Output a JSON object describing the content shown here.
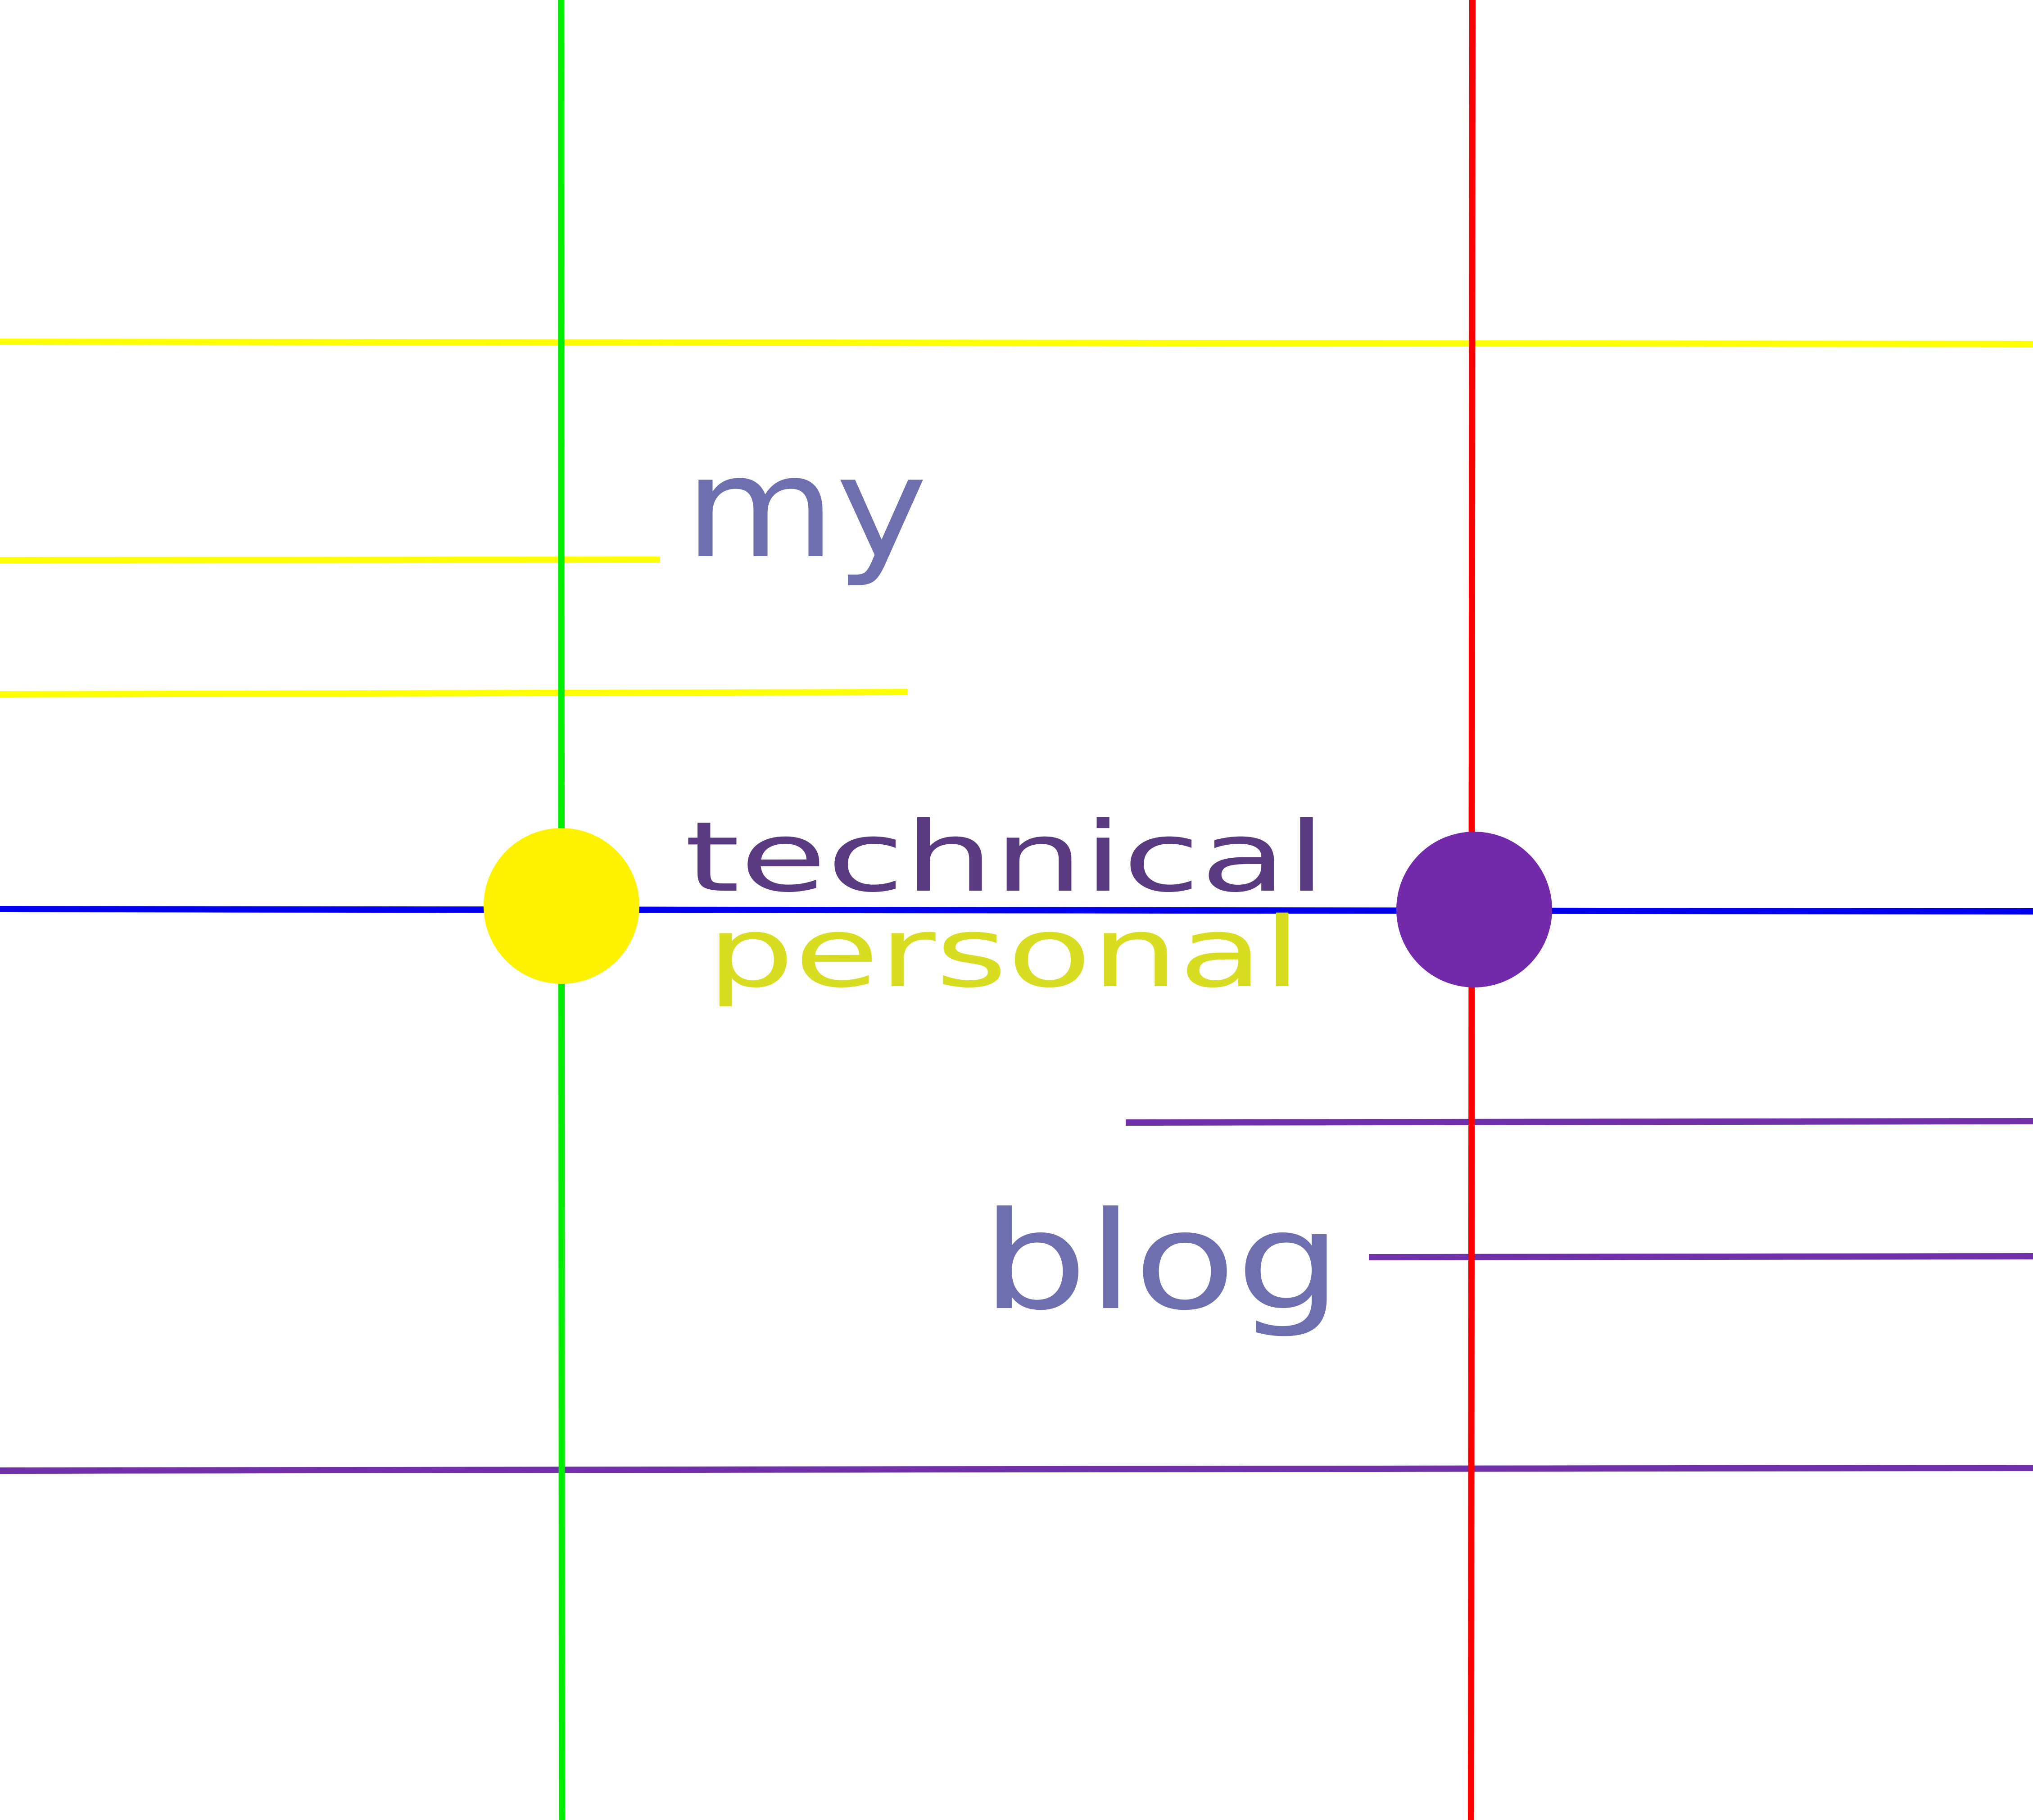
{
  "words": {
    "my": "my",
    "technical": "technical",
    "personal": "personal",
    "blog": "blog"
  },
  "colors": {
    "background": "#ffffff",
    "green_line": "#00ee00",
    "red_line": "#ff0000",
    "yellow_line": "#ffff00",
    "blue_line": "#0000ee",
    "purple_line": "#7030a8",
    "yellow_dot": "#fff200",
    "purple_dot": "#722aaa",
    "text_my_blog": "#6e6fae",
    "text_technical": "#5a3a80",
    "text_personal": "#d8dd22"
  }
}
